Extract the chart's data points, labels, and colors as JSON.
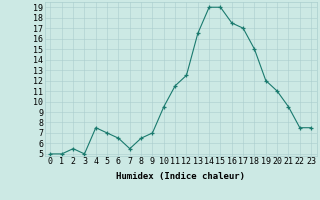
{
  "x": [
    0,
    1,
    2,
    3,
    4,
    5,
    6,
    7,
    8,
    9,
    10,
    11,
    12,
    13,
    14,
    15,
    16,
    17,
    18,
    19,
    20,
    21,
    22,
    23
  ],
  "y": [
    5,
    5,
    5.5,
    5,
    7.5,
    7,
    6.5,
    5.5,
    6.5,
    7,
    9.5,
    11.5,
    12.5,
    16.5,
    19,
    19,
    17.5,
    17,
    15,
    12,
    11,
    9.5,
    7.5,
    7.5
  ],
  "xlabel": "Humidex (Indice chaleur)",
  "xlim": [
    -0.5,
    23.5
  ],
  "ylim": [
    4.8,
    19.5
  ],
  "yticks": [
    5,
    6,
    7,
    8,
    9,
    10,
    11,
    12,
    13,
    14,
    15,
    16,
    17,
    18,
    19
  ],
  "xticks": [
    0,
    1,
    2,
    3,
    4,
    5,
    6,
    7,
    8,
    9,
    10,
    11,
    12,
    13,
    14,
    15,
    16,
    17,
    18,
    19,
    20,
    21,
    22,
    23
  ],
  "line_color": "#1a7a6e",
  "marker_color": "#1a7a6e",
  "bg_color": "#cce9e4",
  "grid_color": "#aacece",
  "label_fontsize": 6.5,
  "tick_fontsize": 6.0
}
